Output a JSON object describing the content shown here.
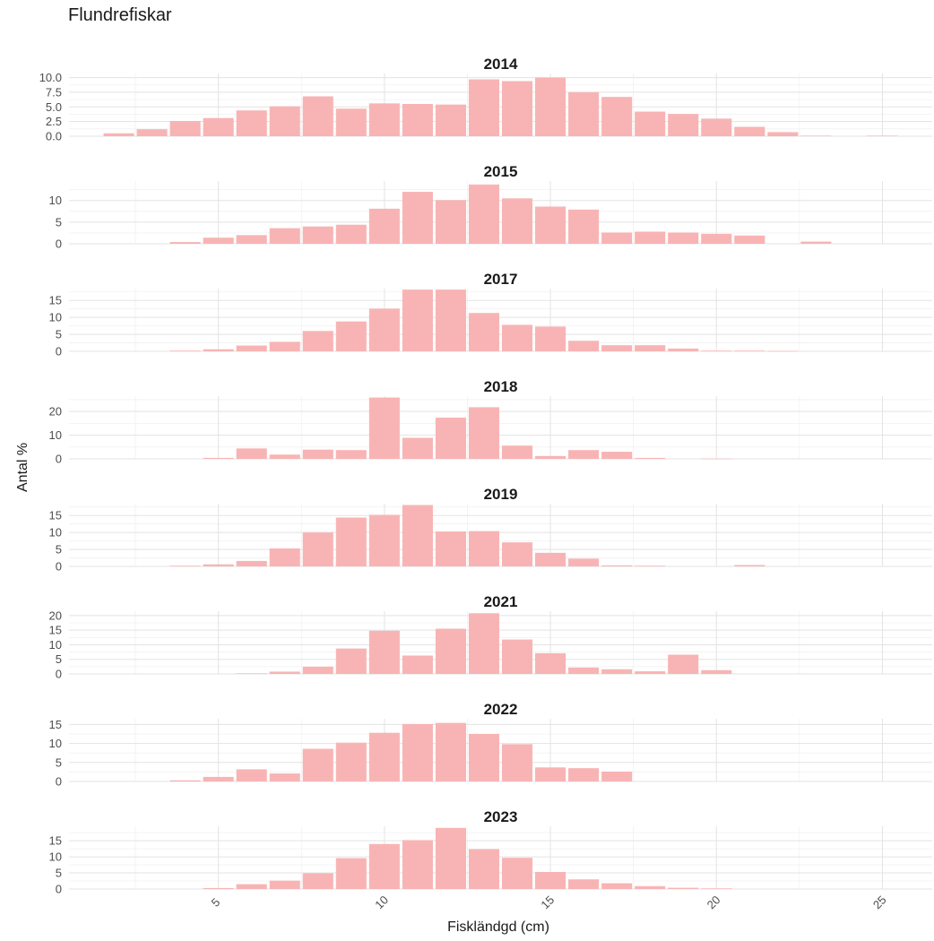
{
  "title": "Flundrefiskar",
  "chart_data": {
    "type": "bar",
    "ylabel": "Antal %",
    "xlabel": "Fiskländgd (cm)",
    "x_ticks": [
      5,
      10,
      15,
      20,
      25
    ],
    "xlim": [
      0.5,
      26.5
    ],
    "bar_color": "#f8b4b4",
    "grid": true,
    "x": [
      1,
      2,
      3,
      4,
      5,
      6,
      7,
      8,
      9,
      10,
      11,
      12,
      13,
      14,
      15,
      16,
      17,
      18,
      19,
      20,
      21,
      22,
      23,
      24,
      25,
      26
    ],
    "panels": [
      {
        "name": "2014",
        "yticks": [
          0.0,
          2.5,
          5.0,
          7.5,
          10.0
        ],
        "ytick_labels": [
          "0.0",
          "2.5",
          "5.0",
          "7.5",
          "10.0"
        ],
        "ylim": [
          0,
          10.7
        ],
        "values": [
          0,
          0.5,
          1.2,
          2.6,
          3.1,
          4.4,
          5.1,
          6.8,
          4.7,
          5.6,
          5.5,
          5.4,
          9.7,
          9.4,
          10.0,
          7.5,
          6.7,
          4.2,
          3.8,
          3.0,
          1.6,
          0.7,
          0.1,
          0,
          0.1,
          0
        ]
      },
      {
        "name": "2015",
        "yticks": [
          0,
          5,
          10
        ],
        "ytick_labels": [
          "0",
          "5",
          "10"
        ],
        "ylim": [
          0,
          14.5
        ],
        "values": [
          0,
          0,
          0,
          0.4,
          1.4,
          2.0,
          3.6,
          4.0,
          4.4,
          8.1,
          12.0,
          10.1,
          13.7,
          10.5,
          8.6,
          7.9,
          2.6,
          2.8,
          2.6,
          2.3,
          1.9,
          0,
          0.5,
          0,
          0,
          0
        ]
      },
      {
        "name": "2017",
        "yticks": [
          0,
          5,
          10,
          15
        ],
        "ytick_labels": [
          "0",
          "5",
          "10",
          "15"
        ],
        "ylim": [
          0,
          18.5
        ],
        "values": [
          0,
          0,
          0,
          0.2,
          0.6,
          1.7,
          2.8,
          6.0,
          8.8,
          12.6,
          18.2,
          18.2,
          11.3,
          7.8,
          7.3,
          3.1,
          1.8,
          1.8,
          0.8,
          0.2,
          0.2,
          0.1,
          0,
          0,
          0,
          0
        ]
      },
      {
        "name": "2018",
        "yticks": [
          0,
          10,
          20
        ],
        "ytick_labels": [
          "0",
          "10",
          "20"
        ],
        "ylim": [
          0,
          26.5
        ],
        "values": [
          0,
          0,
          0,
          0,
          0.4,
          4.4,
          1.8,
          3.9,
          3.7,
          25.9,
          8.9,
          17.4,
          21.8,
          5.6,
          1.2,
          3.7,
          3.0,
          0.4,
          0,
          0.1,
          0,
          0,
          0,
          0,
          0,
          0
        ]
      },
      {
        "name": "2019",
        "yticks": [
          0,
          5,
          10,
          15
        ],
        "ytick_labels": [
          "0",
          "5",
          "10",
          "15"
        ],
        "ylim": [
          0,
          18.5
        ],
        "values": [
          0,
          0,
          0,
          0.2,
          0.6,
          1.6,
          5.3,
          10.0,
          14.4,
          15.2,
          18.1,
          10.3,
          10.4,
          7.1,
          4.0,
          2.3,
          0.3,
          0.2,
          0,
          0,
          0.4,
          0,
          0,
          0,
          0,
          0
        ]
      },
      {
        "name": "2021",
        "yticks": [
          0,
          5,
          10,
          15,
          20
        ],
        "ytick_labels": [
          "0",
          "5",
          "10",
          "15",
          "20"
        ],
        "ylim": [
          0,
          21.5
        ],
        "values": [
          0,
          0,
          0,
          0,
          0,
          0.2,
          0.8,
          2.5,
          8.7,
          14.8,
          6.3,
          15.5,
          20.8,
          11.8,
          7.1,
          2.2,
          1.6,
          0.9,
          6.6,
          1.3,
          0,
          0,
          0,
          0,
          0,
          0
        ]
      },
      {
        "name": "2022",
        "yticks": [
          0,
          5,
          10,
          15
        ],
        "ytick_labels": [
          "0",
          "5",
          "10",
          "15"
        ],
        "ylim": [
          0,
          16.5
        ],
        "values": [
          0,
          0,
          0,
          0.3,
          1.2,
          3.2,
          2.1,
          8.6,
          10.2,
          12.8,
          15.1,
          15.4,
          12.5,
          9.8,
          3.7,
          3.5,
          2.6,
          0,
          0,
          0,
          0,
          0,
          0,
          0,
          0,
          0
        ]
      },
      {
        "name": "2023",
        "yticks": [
          0,
          5,
          10,
          15
        ],
        "ytick_labels": [
          "0",
          "5",
          "10",
          "15"
        ],
        "ylim": [
          0,
          19.5
        ],
        "values": [
          0,
          0,
          0,
          0,
          0.3,
          1.5,
          2.6,
          4.9,
          9.6,
          14.0,
          15.2,
          19.0,
          12.4,
          9.7,
          5.3,
          3.0,
          1.8,
          0.9,
          0.4,
          0.2,
          0,
          0,
          0,
          0,
          0,
          0
        ]
      }
    ]
  }
}
